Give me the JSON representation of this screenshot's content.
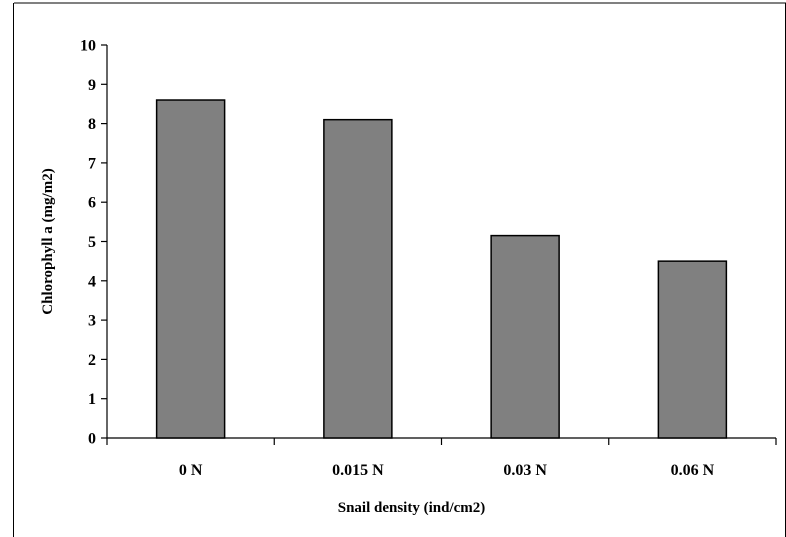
{
  "chart_data": {
    "type": "bar",
    "categories": [
      "0 N",
      "0.015 N",
      "0.03 N",
      "0.06 N"
    ],
    "values": [
      8.6,
      8.1,
      5.15,
      4.5
    ],
    "title": "",
    "xlabel": "Snail density (ind/cm2)",
    "ylabel": "Chlorophyll a (mg/m2)",
    "ylim": [
      0,
      10
    ],
    "yticks": [
      0,
      1,
      2,
      3,
      4,
      5,
      6,
      7,
      8,
      9,
      10
    ],
    "grid": false,
    "legend": "none",
    "bar_color": "#808080",
    "bar_edge_color": "#000000"
  }
}
